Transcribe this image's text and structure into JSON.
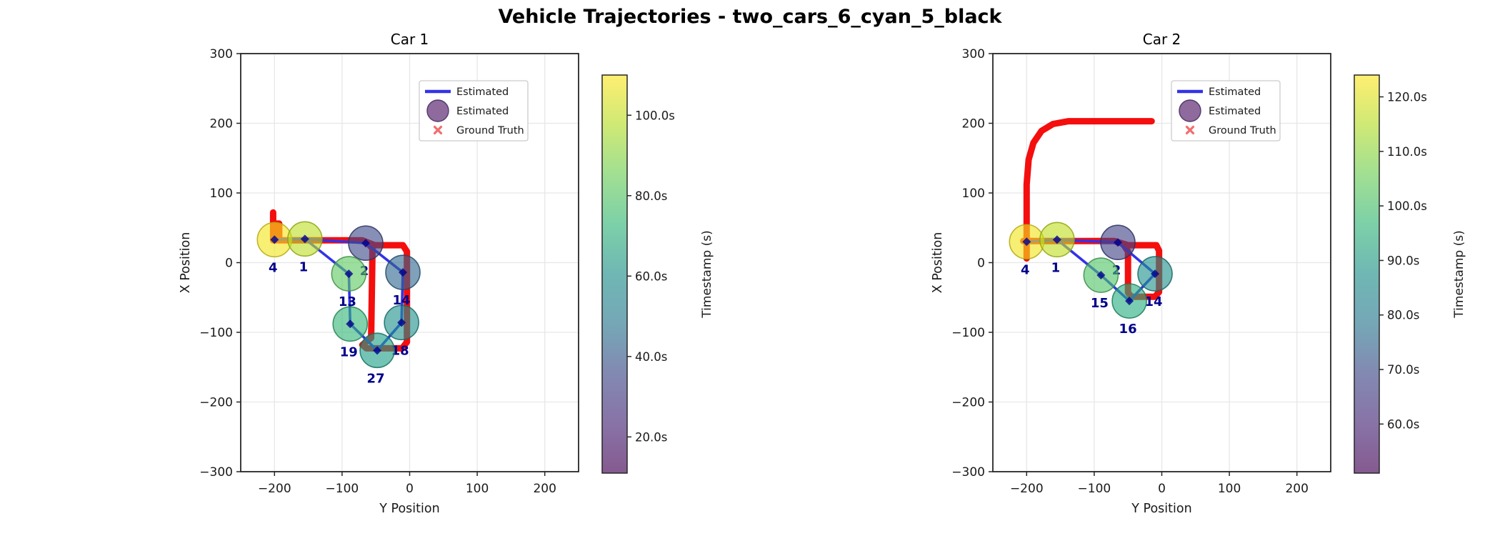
{
  "figure": {
    "title": "Vehicle Trajectories - two_cars_6_cyan_5_black"
  },
  "colors": {
    "background": "#ffffff",
    "red": "#f40e0e",
    "blue": "#3333e6",
    "navy": "#00008b",
    "axis": "#262626",
    "text": "#1a1a1a",
    "grid": "#e7e7e7",
    "legend_circle": "#8e6a9d",
    "legend_circle_edge": "#52396b",
    "gt_marker": "#f26d6d"
  },
  "legend_items": [
    {
      "type": "line",
      "label": "Estimated"
    },
    {
      "type": "circle",
      "label": "Estimated"
    },
    {
      "type": "x",
      "label": "Ground Truth"
    }
  ],
  "chart_data": [
    {
      "type": "scatter",
      "title": "Car 1",
      "xlabel": "Y Position",
      "ylabel": "X Position",
      "xlim": [
        -250,
        250
      ],
      "ylim": [
        -300,
        300
      ],
      "xticks": [
        -200,
        -100,
        0,
        100,
        200
      ],
      "yticks": [
        300,
        200,
        100,
        0,
        -100,
        -200,
        -300
      ],
      "grid": true,
      "legend": [
        "Estimated",
        "Estimated",
        "Ground Truth"
      ],
      "colorbar": {
        "label": "Timestamp (s)",
        "ticks": [
          "20.0s",
          "40.0s",
          "60.0s",
          "80.0s",
          "100.0s"
        ],
        "tick_values": [
          20,
          40,
          60,
          80,
          100
        ],
        "range": [
          11,
          110
        ],
        "gradient": [
          "#feef71",
          "#cfe975",
          "#a1df92",
          "#7cd0a8",
          "#6fb7b4",
          "#75a7b6",
          "#8289b2",
          "#8873a7",
          "#855a90"
        ]
      },
      "points": [
        {
          "label": "4",
          "y": -200,
          "x": 33,
          "color": "#f4e61e",
          "edge": "#b5a90f"
        },
        {
          "label": "1",
          "y": -155,
          "x": 34,
          "color": "#bddf26",
          "edge": "#8da414"
        },
        {
          "label": "2",
          "y": -65,
          "x": 28,
          "color": "#3e4a89",
          "edge": "#2c3563"
        },
        {
          "label": "13",
          "y": -90,
          "x": -16,
          "color": "#5ec962",
          "edge": "#419145"
        },
        {
          "label": "14",
          "y": -10,
          "x": -14,
          "color": "#31688e",
          "edge": "#224a66"
        },
        {
          "label": "19",
          "y": -88,
          "x": -88,
          "color": "#35b779",
          "edge": "#248355"
        },
        {
          "label": "18",
          "y": -12,
          "x": -86,
          "color": "#20938c",
          "edge": "#156a65"
        },
        {
          "label": "27",
          "y": -48,
          "x": -126,
          "color": "#1fa088",
          "edge": "#147260"
        }
      ],
      "estimated_path": [
        "4",
        "1",
        "13",
        "19",
        "27",
        "18",
        "14",
        "2",
        "1"
      ],
      "ground_truth_paths": [
        [
          [
            -202,
            72
          ],
          [
            -202,
            32
          ],
          [
            -197,
            32
          ],
          [
            -197,
            56
          ],
          [
            -193,
            56
          ],
          [
            -193,
            32
          ],
          [
            -70,
            32
          ],
          [
            -52,
            25
          ],
          [
            -10,
            25
          ],
          [
            -4,
            16
          ],
          [
            -4,
            -114
          ],
          [
            -11,
            -123
          ],
          [
            -64,
            -123
          ],
          [
            -70,
            -118
          ],
          [
            -57,
            -108
          ],
          [
            -55,
            20
          ],
          [
            -61,
            27
          ]
        ]
      ]
    },
    {
      "type": "scatter",
      "title": "Car 2",
      "xlabel": "Y Position",
      "ylabel": "X Position",
      "xlim": [
        -250,
        250
      ],
      "ylim": [
        -300,
        300
      ],
      "xticks": [
        -200,
        -100,
        0,
        100,
        200
      ],
      "yticks": [
        300,
        200,
        100,
        0,
        -100,
        -200,
        -300
      ],
      "grid": true,
      "legend": [
        "Estimated",
        "Estimated",
        "Ground Truth"
      ],
      "colorbar": {
        "label": "Timestamp (s)",
        "ticks": [
          "60.0s",
          "70.0s",
          "80.0s",
          "90.0s",
          "100.0s",
          "110.0s",
          "120.0s"
        ],
        "tick_values": [
          60,
          70,
          80,
          90,
          100,
          110,
          120
        ],
        "range": [
          51,
          124
        ],
        "gradient": [
          "#feef71",
          "#cfe975",
          "#a1df92",
          "#7cd0a8",
          "#6fb7b4",
          "#75a7b6",
          "#8289b2",
          "#8873a7",
          "#855a90"
        ]
      },
      "points": [
        {
          "label": "4",
          "y": -200,
          "x": 30,
          "color": "#f1e51d",
          "edge": "#b2a80e"
        },
        {
          "label": "1",
          "y": -155,
          "x": 33,
          "color": "#c2df23",
          "edge": "#90a513"
        },
        {
          "label": "2",
          "y": -65,
          "x": 29,
          "color": "#414487",
          "edge": "#2e3061"
        },
        {
          "label": "15",
          "y": -90,
          "x": -18,
          "color": "#52c569",
          "edge": "#388d49"
        },
        {
          "label": "14",
          "y": -10,
          "x": -16,
          "color": "#21918c",
          "edge": "#166663"
        },
        {
          "label": "16",
          "y": -48,
          "x": -55,
          "color": "#28ae80",
          "edge": "#1a7d5b"
        }
      ],
      "estimated_path": [
        "4",
        "1",
        "15",
        "16",
        "14",
        "2",
        "1"
      ],
      "ground_truth_paths": [
        [
          [
            -200,
            6
          ],
          [
            -200,
            112
          ],
          [
            -197,
            148
          ],
          [
            -190,
            172
          ],
          [
            -178,
            189
          ],
          [
            -161,
            199
          ],
          [
            -138,
            203
          ],
          [
            -15,
            203
          ]
        ],
        [
          [
            -205,
            31
          ],
          [
            -70,
            31
          ],
          [
            -50,
            25
          ],
          [
            -8,
            25
          ],
          [
            -4,
            17
          ],
          [
            -4,
            -42
          ],
          [
            -10,
            -49
          ],
          [
            -45,
            -49
          ],
          [
            -50,
            -43
          ],
          [
            -50,
            16
          ],
          [
            -56,
            25
          ]
        ]
      ]
    }
  ]
}
